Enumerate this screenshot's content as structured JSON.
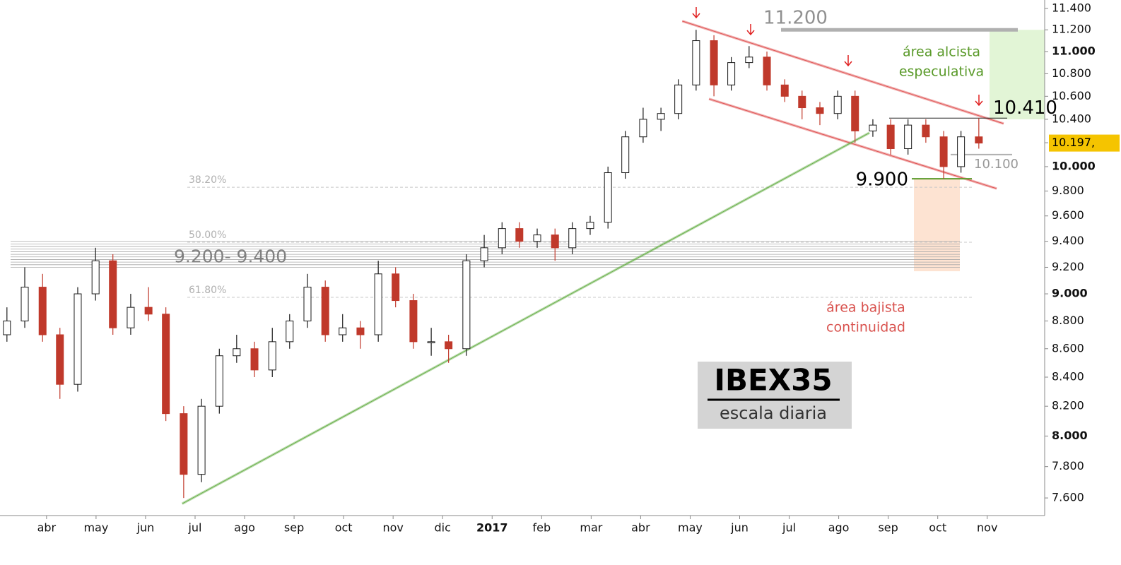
{
  "chart_data": {
    "type": "candlestick",
    "title": "IBEX35",
    "subtitle": "escala diaria",
    "log_scale": true,
    "ylim": [
      7490,
      11480
    ],
    "yticks": [
      {
        "value": 7600,
        "label": "7.600"
      },
      {
        "value": 7800,
        "label": "7.800"
      },
      {
        "value": 8000,
        "label": "8.000"
      },
      {
        "value": 8200,
        "label": "8.200"
      },
      {
        "value": 8400,
        "label": "8.400"
      },
      {
        "value": 8600,
        "label": "8.600"
      },
      {
        "value": 8800,
        "label": "8.800"
      },
      {
        "value": 9000,
        "label": "9.000"
      },
      {
        "value": 9200,
        "label": "9.200"
      },
      {
        "value": 9400,
        "label": "9.400"
      },
      {
        "value": 9600,
        "label": "9.600"
      },
      {
        "value": 9800,
        "label": "9.800"
      },
      {
        "value": 10000,
        "label": "10.000"
      },
      {
        "value": 10200,
        "label": "10.200"
      },
      {
        "value": 10400,
        "label": "10.400"
      },
      {
        "value": 10600,
        "label": "10.600"
      },
      {
        "value": 10800,
        "label": "10.800"
      },
      {
        "value": 11000,
        "label": "11.000"
      },
      {
        "value": 11200,
        "label": "11.200"
      },
      {
        "value": 11400,
        "label": "11.400"
      }
    ],
    "xlim": [
      2.06,
      23.16
    ],
    "xticks": [
      {
        "value": 3,
        "label": "abr"
      },
      {
        "value": 4,
        "label": "may"
      },
      {
        "value": 5,
        "label": "jun"
      },
      {
        "value": 6,
        "label": "jul"
      },
      {
        "value": 7,
        "label": "ago"
      },
      {
        "value": 8,
        "label": "sep"
      },
      {
        "value": 9,
        "label": "oct"
      },
      {
        "value": 10,
        "label": "nov"
      },
      {
        "value": 11,
        "label": "dic"
      },
      {
        "value": 12,
        "label": "2017"
      },
      {
        "value": 13,
        "label": "feb"
      },
      {
        "value": 14,
        "label": "mar"
      },
      {
        "value": 15,
        "label": "abr"
      },
      {
        "value": 16,
        "label": "may"
      },
      {
        "value": 17,
        "label": "jun"
      },
      {
        "value": 18,
        "label": "jul"
      },
      {
        "value": 19,
        "label": "ago"
      },
      {
        "value": 20,
        "label": "sep"
      },
      {
        "value": 21,
        "label": "oct"
      },
      {
        "value": 22,
        "label": "nov"
      }
    ],
    "up_color": "#1a1a1a",
    "down_color": "#c0392b",
    "x": [
      2.2,
      2.56,
      2.92,
      3.27,
      3.63,
      3.99,
      4.34,
      4.7,
      5.06,
      5.41,
      5.77,
      6.13,
      6.49,
      6.84,
      7.2,
      7.56,
      7.91,
      8.27,
      8.63,
      8.98,
      9.34,
      9.7,
      10.05,
      10.41,
      10.77,
      11.12,
      11.48,
      11.84,
      12.2,
      12.55,
      12.91,
      13.27,
      13.62,
      13.98,
      14.34,
      14.69,
      15.05,
      15.41,
      15.76,
      16.12,
      16.48,
      16.83,
      17.19,
      17.55,
      17.91,
      18.26,
      18.62,
      18.98,
      19.33,
      19.69,
      20.05,
      20.4,
      20.76,
      21.12,
      21.47,
      21.83
    ],
    "open": [
      8700,
      8800,
      9050,
      8700,
      8350,
      9000,
      9250,
      8750,
      8900,
      8850,
      8150,
      7750,
      8200,
      8550,
      8600,
      8450,
      8650,
      8800,
      9050,
      8700,
      8750,
      8700,
      9150,
      8950,
      8650,
      8650,
      8600,
      9250,
      9350,
      9500,
      9400,
      9450,
      9350,
      9500,
      9550,
      9950,
      10250,
      10400,
      10450,
      10700,
      11100,
      10700,
      10900,
      10950,
      10700,
      10600,
      10500,
      10450,
      10600,
      10300,
      10350,
      10150,
      10350,
      10250,
      10000,
      10250
    ],
    "high": [
      8900,
      9200,
      9150,
      8750,
      9050,
      9350,
      9300,
      9000,
      9050,
      8900,
      8200,
      8250,
      8600,
      8700,
      8650,
      8750,
      8850,
      9150,
      9100,
      8850,
      8800,
      9250,
      9200,
      9000,
      8750,
      8700,
      9300,
      9450,
      9550,
      9550,
      9500,
      9500,
      9550,
      9600,
      10000,
      10300,
      10500,
      10500,
      10750,
      11200,
      11150,
      10950,
      11050,
      11000,
      10750,
      10650,
      10550,
      10650,
      10650,
      10400,
      10400,
      10400,
      10400,
      10300,
      10300,
      10410
    ],
    "low": [
      8650,
      8750,
      8650,
      8250,
      8300,
      8950,
      8700,
      8700,
      8800,
      8100,
      7600,
      7700,
      8150,
      8500,
      8400,
      8400,
      8600,
      8750,
      8650,
      8650,
      8600,
      8650,
      8900,
      8600,
      8550,
      8500,
      8550,
      9200,
      9300,
      9350,
      9350,
      9250,
      9300,
      9450,
      9500,
      9900,
      10200,
      10300,
      10400,
      10650,
      10600,
      10650,
      10850,
      10650,
      10550,
      10400,
      10350,
      10400,
      10200,
      10250,
      10100,
      10100,
      10200,
      9900,
      9950,
      10150
    ],
    "close": [
      8800,
      9050,
      8700,
      8350,
      9000,
      9250,
      8750,
      8900,
      8850,
      8150,
      7750,
      8200,
      8550,
      8600,
      8450,
      8650,
      8800,
      9050,
      8700,
      8750,
      8700,
      9150,
      8950,
      8650,
      8650,
      8600,
      9250,
      9350,
      9500,
      9400,
      9450,
      9350,
      9500,
      9550,
      9950,
      10250,
      10400,
      10450,
      10700,
      11100,
      10700,
      10900,
      10950,
      10700,
      10600,
      10500,
      10450,
      10600,
      10300,
      10350,
      10150,
      10350,
      10250,
      10000,
      10250,
      10197
    ],
    "last_price": {
      "value": 10197,
      "label": "10.197,"
    },
    "fibonacci": [
      {
        "label": "38.20%",
        "value": 9831
      },
      {
        "label": "50.00%",
        "value": 9393
      },
      {
        "label": "61.80%",
        "value": 8974
      }
    ],
    "zone": {
      "label": "9.200- 9.400",
      "from": 9200,
      "to": 9400
    },
    "levels": [
      {
        "label": "11.200",
        "value": 11200
      },
      {
        "label": "10.410",
        "value": 10410
      },
      {
        "label": "10.100",
        "value": 10100
      },
      {
        "label": "9.900",
        "value": 9900
      }
    ],
    "areas": [
      {
        "lines": [
          "área alcista",
          "especulativa"
        ],
        "from": 10400,
        "to": 11200,
        "color": "#e2f5d6",
        "text_color": "#5a9a2a"
      },
      {
        "lines": [
          "área bajista",
          "continuidad"
        ],
        "from": 9170,
        "to": 9900,
        "color": "#fde3d2",
        "text_color": "#d9534f"
      }
    ],
    "trendlines": [
      {
        "color": "#e05555",
        "x": [
          15.84,
          22.33
        ],
        "y": [
          11281,
          10363
        ]
      },
      {
        "color": "#e05555",
        "x": [
          16.38,
          22.19
        ],
        "y": [
          10577,
          9820
        ]
      },
      {
        "color": "#6ab04c",
        "x": [
          5.74,
          19.62
        ],
        "y": [
          7564,
          10284
        ]
      }
    ]
  }
}
